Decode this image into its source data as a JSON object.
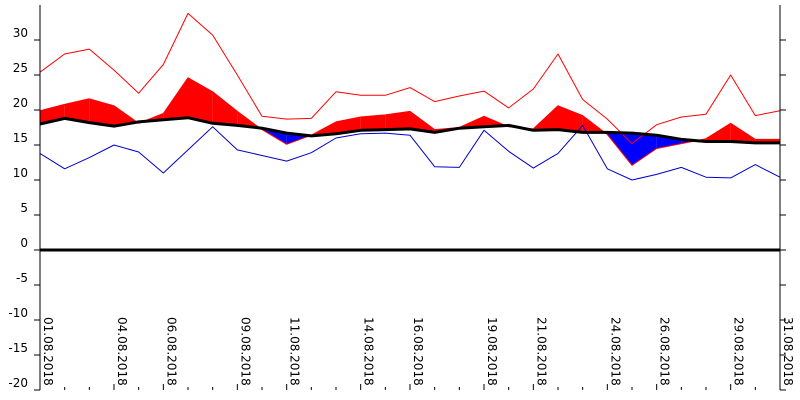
{
  "chart_data": {
    "type": "area",
    "title": "",
    "xlabel": "",
    "ylabel": "",
    "ylim": [
      -20,
      35
    ],
    "yticks": [
      -20,
      -15,
      -10,
      -5,
      0,
      5,
      10,
      15,
      20,
      25,
      30
    ],
    "ytick_labels": [
      "-20",
      "-15",
      "-10",
      "-5",
      "0",
      "5",
      "10",
      "15",
      "20",
      "25",
      "30"
    ],
    "grid": false,
    "x": [
      "01.08.2018",
      "02.08.2018",
      "03.08.2018",
      "04.08.2018",
      "05.08.2018",
      "06.08.2018",
      "07.08.2018",
      "08.08.2018",
      "09.08.2018",
      "10.08.2018",
      "11.08.2018",
      "12.08.2018",
      "13.08.2018",
      "14.08.2018",
      "15.08.2018",
      "16.08.2018",
      "17.08.2018",
      "18.08.2018",
      "19.08.2018",
      "20.08.2018",
      "21.08.2018",
      "22.08.2018",
      "23.08.2018",
      "24.08.2018",
      "25.08.2018",
      "26.08.2018",
      "27.08.2018",
      "28.08.2018",
      "29.08.2018",
      "30.08.2018",
      "31.08.2018"
    ],
    "xtick_labels": [
      "01.08.2018",
      "04.08.2018",
      "06.08.2018",
      "09.08.2018",
      "11.08.2018",
      "14.08.2018",
      "16.08.2018",
      "19.08.2018",
      "21.08.2018",
      "24.08.2018",
      "26.08.2018",
      "29.08.2018",
      "31.08.2018"
    ],
    "series": [
      {
        "role": "max",
        "color": "#ff0000",
        "values": [
          25.4,
          28.0,
          28.7,
          25.7,
          22.4,
          26.5,
          33.8,
          30.7,
          25.0,
          19.1,
          18.7,
          18.8,
          22.6,
          22.1,
          22.1,
          23.2,
          21.2,
          22.0,
          22.7,
          20.3,
          23.0,
          28.0,
          21.5,
          18.7,
          15.2,
          17.9,
          19.0,
          19.4,
          25.0,
          19.2,
          19.9
        ]
      },
      {
        "role": "mean",
        "color": "#ff0000",
        "values": [
          19.9,
          20.8,
          21.6,
          20.6,
          18.1,
          19.5,
          24.6,
          22.6,
          19.8,
          17.2,
          15.1,
          16.4,
          18.3,
          19.0,
          19.3,
          19.8,
          17.2,
          17.5,
          19.1,
          17.6,
          17.3,
          20.6,
          19.2,
          16.5,
          12.1,
          14.5,
          15.2,
          15.9,
          18.1,
          15.8,
          15.8
        ]
      },
      {
        "role": "normal",
        "color": "#000000",
        "values": [
          18.0,
          18.8,
          18.2,
          17.7,
          18.3,
          18.6,
          18.9,
          18.1,
          17.8,
          17.4,
          16.7,
          16.3,
          16.6,
          17.1,
          17.2,
          17.3,
          16.8,
          17.4,
          17.6,
          17.8,
          17.1,
          17.2,
          16.8,
          16.8,
          16.7,
          16.4,
          15.8,
          15.5,
          15.5,
          15.3,
          15.3
        ]
      },
      {
        "role": "min",
        "color": "#0000cc",
        "values": [
          13.8,
          11.6,
          13.2,
          15.0,
          14.0,
          11.0,
          14.3,
          17.6,
          14.3,
          13.5,
          12.7,
          13.9,
          16.0,
          16.6,
          16.7,
          16.4,
          11.9,
          11.8,
          17.1,
          14.1,
          11.7,
          13.8,
          17.8,
          11.6,
          10.0,
          10.8,
          11.8,
          10.4,
          10.3,
          12.2,
          10.4
        ]
      }
    ],
    "colors": {
      "above_fill": "#ff0000",
      "below_fill": "#0000ff",
      "zero_line": "#000000",
      "axis": "#000000"
    }
  }
}
